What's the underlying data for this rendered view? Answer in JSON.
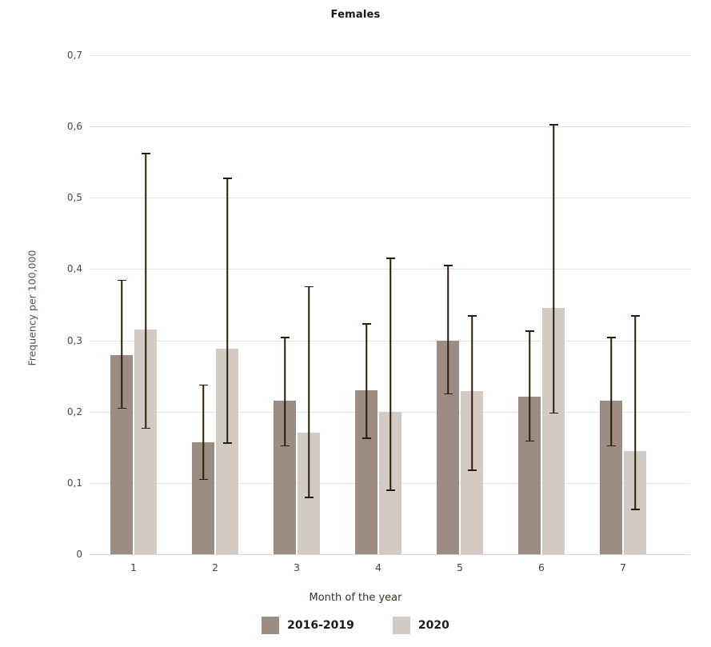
{
  "title": "Females",
  "y_axis": {
    "label": "Frequency per 100,000",
    "ticks": [
      "0,7",
      "0,6",
      "0,5",
      "0,4",
      "0,3",
      "0,2",
      "0,1",
      "0"
    ]
  },
  "x_axis": {
    "label": "Month of the year",
    "ticks": [
      "1",
      "2",
      "3",
      "4",
      "5",
      "6",
      "7"
    ]
  },
  "colors": {
    "series_2016_2019": "#9d8c82",
    "series_2020": "#d4cac4",
    "error_bar": "#2b1c09",
    "gridline": "#e3e2e1",
    "background": "#ffffff"
  },
  "chart_data": {
    "type": "bar",
    "title": "Females",
    "xlabel": "Month of the year",
    "ylabel": "Frequency per 100,000",
    "categories": [
      1,
      2,
      3,
      4,
      5,
      6,
      7
    ],
    "ylim": [
      0,
      0.7
    ],
    "ytick_step": 0.1,
    "decimal_separator": ",",
    "grid": true,
    "legend_position": "bottom",
    "error_bars": true,
    "series": [
      {
        "name": "2016-2019",
        "color": "#9d8c82",
        "values": [
          0.279,
          0.157,
          0.215,
          0.23,
          0.3,
          0.221,
          0.215
        ],
        "error_low": [
          0.204,
          0.104,
          0.151,
          0.162,
          0.224,
          0.158,
          0.151
        ],
        "error_high": [
          0.385,
          0.238,
          0.305,
          0.324,
          0.406,
          0.314,
          0.305
        ]
      },
      {
        "name": "2020",
        "color": "#d4cac4",
        "values": [
          0.315,
          0.288,
          0.171,
          0.2,
          0.229,
          0.345,
          0.145
        ],
        "error_low": [
          0.176,
          0.155,
          0.079,
          0.089,
          0.117,
          0.197,
          0.062
        ],
        "error_high": [
          0.563,
          0.528,
          0.376,
          0.416,
          0.335,
          0.603,
          0.335
        ]
      }
    ]
  }
}
